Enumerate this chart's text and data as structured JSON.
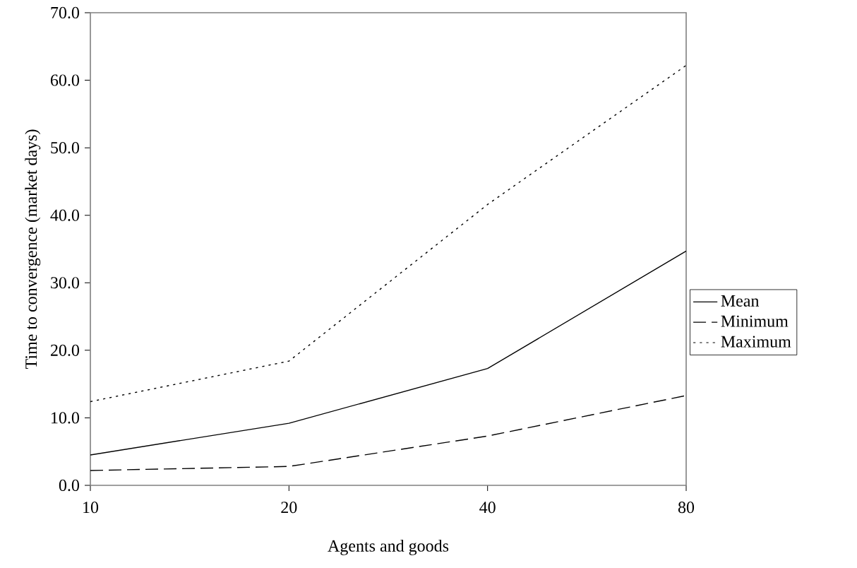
{
  "chart_data": {
    "type": "line",
    "xlabel": "Agents and goods",
    "ylabel": "Time to convergence (market days)",
    "categories": [
      "10",
      "20",
      "40",
      "80"
    ],
    "series": [
      {
        "name": "Mean",
        "color": "#000000",
        "line_style": "solid",
        "values": [
          4.5,
          9.2,
          17.3,
          34.7
        ]
      },
      {
        "name": "Minimum",
        "color": "#000000",
        "line_style": "dashed",
        "values": [
          2.2,
          2.8,
          7.3,
          13.3
        ]
      },
      {
        "name": "Maximum",
        "color": "#000000",
        "line_style": "dotted",
        "values": [
          12.4,
          18.4,
          41.6,
          62.2
        ]
      }
    ],
    "ylim": [
      0,
      70
    ],
    "yticks": [
      {
        "value": 0,
        "label": "0.0"
      },
      {
        "value": 10,
        "label": "10.0"
      },
      {
        "value": 20,
        "label": "20.0"
      },
      {
        "value": 30,
        "label": "30.0"
      },
      {
        "value": 40,
        "label": "40.0"
      },
      {
        "value": 50,
        "label": "50.0"
      },
      {
        "value": 60,
        "label": "60.0"
      },
      {
        "value": 70,
        "label": "70.0"
      }
    ],
    "grid": false,
    "legend": "right",
    "marker": "none"
  }
}
